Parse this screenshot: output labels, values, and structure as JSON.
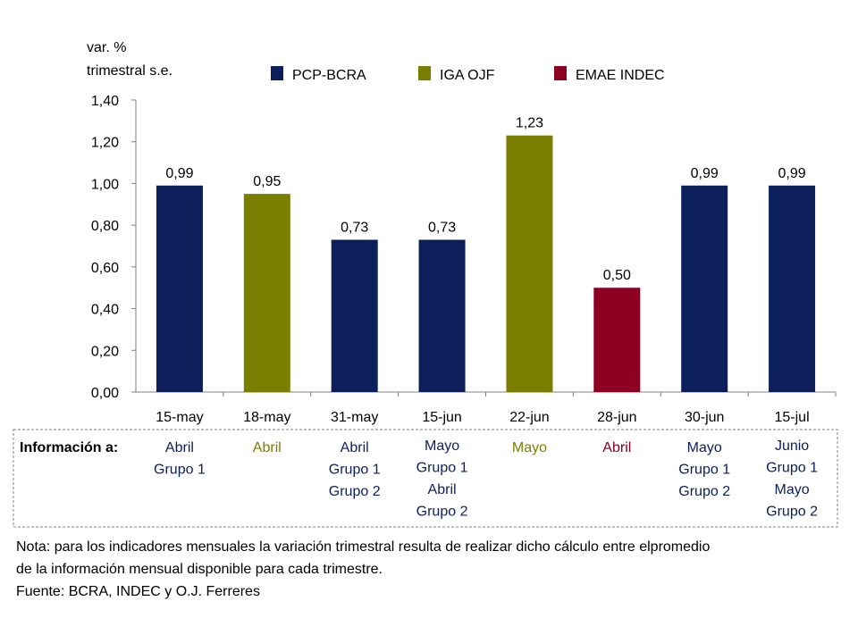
{
  "chart_data": {
    "type": "bar",
    "ylabel_line1": "var. %",
    "ylabel_line2": "trimestral s.e.",
    "ylim": [
      0,
      1.4
    ],
    "yticks": [
      "0,00",
      "0,20",
      "0,40",
      "0,60",
      "0,80",
      "1,00",
      "1,20",
      "1,40"
    ],
    "categories": [
      "15-may",
      "18-may",
      "31-may",
      "15-jun",
      "22-jun",
      "28-jun",
      "30-jun",
      "15-jul"
    ],
    "values": [
      0.99,
      0.95,
      0.73,
      0.73,
      1.23,
      0.5,
      0.99,
      0.99
    ],
    "value_labels": [
      "0,99",
      "0,95",
      "0,73",
      "0,73",
      "1,23",
      "0,50",
      "0,99",
      "0,99"
    ],
    "bar_series": [
      "PCP-BCRA",
      "IGA OJF",
      "PCP-BCRA",
      "PCP-BCRA",
      "IGA OJF",
      "EMAE INDEC",
      "PCP-BCRA",
      "PCP-BCRA"
    ],
    "legend": [
      {
        "name": "PCP-BCRA",
        "color": "#0c1f5b"
      },
      {
        "name": "IGA OJF",
        "color": "#7b7f00"
      },
      {
        "name": "EMAE INDEC",
        "color": "#8c0022"
      }
    ],
    "legend_placement": "top",
    "grid": false
  },
  "info": {
    "label": "Información a:",
    "columns": [
      [
        "Abril",
        "Grupo 1"
      ],
      [
        "Abril"
      ],
      [
        "Abril",
        "Grupo 1",
        "Grupo 2"
      ],
      [
        "Mayo",
        "Grupo 1",
        "Abril",
        "Grupo 2"
      ],
      [
        "Mayo"
      ],
      [
        "Abril"
      ],
      [
        "Mayo",
        "Grupo 1",
        "Grupo 2"
      ],
      [
        "Junio",
        "Grupo 1",
        "Mayo",
        "Grupo 2"
      ]
    ]
  },
  "notes": {
    "line1": "Nota: para los indicadores mensuales la variación trimestral resulta de realizar dicho cálculo entre elpromedio",
    "line2": "de la información mensual disponible para cada trimestre.",
    "source": "Fuente: BCRA, INDEC y O.J. Ferreres"
  }
}
